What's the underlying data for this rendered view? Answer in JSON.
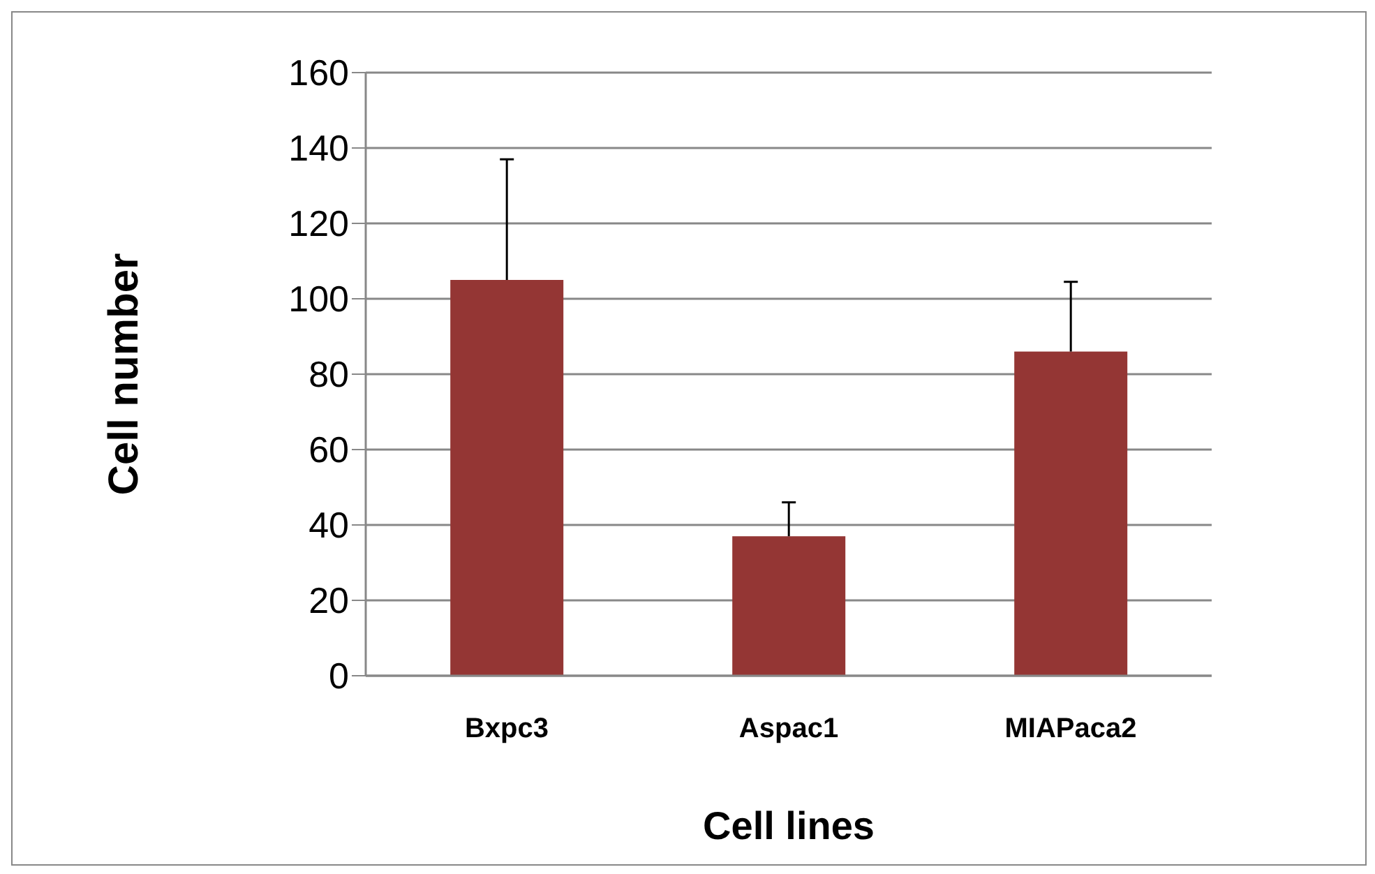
{
  "chart_data": {
    "type": "bar",
    "xlabel": "Cell lines",
    "ylabel": "Cell number",
    "categories": [
      "Bxpc3",
      "Aspac1",
      "MIAPaca2"
    ],
    "values": [
      105,
      37,
      86
    ],
    "errors": [
      [
        105,
        137
      ],
      [
        37,
        46
      ],
      [
        86,
        104.5
      ]
    ],
    "color": "#943634",
    "ylim": [
      0,
      160
    ],
    "yticks": [
      0,
      20,
      40,
      60,
      80,
      100,
      120,
      140,
      160
    ],
    "grid": "y",
    "legend": false
  }
}
